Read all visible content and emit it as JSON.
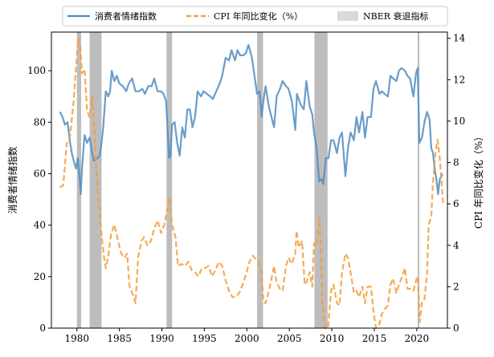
{
  "chart_data": {
    "type": "line",
    "x_axis": {
      "range": [
        1977.0,
        2023.6
      ],
      "ticks": [
        1980,
        1985,
        1990,
        1995,
        2000,
        2005,
        2010,
        2015,
        2020
      ],
      "tick_labels": [
        "1980",
        "1985",
        "1990",
        "1995",
        "2000",
        "2005",
        "2010",
        "2015",
        "2020"
      ]
    },
    "y_left": {
      "label": "消费者情绪指数",
      "range": [
        0,
        115
      ],
      "ticks": [
        0,
        20,
        40,
        60,
        80,
        100
      ],
      "tick_labels": [
        "0",
        "20",
        "40",
        "60",
        "80",
        "100"
      ]
    },
    "y_right": {
      "label": "CPI 年同比变化（%）",
      "range": [
        0,
        14.3
      ],
      "ticks": [
        0,
        2,
        4,
        6,
        8,
        10,
        12,
        14
      ],
      "tick_labels": [
        "0",
        "2",
        "4",
        "6",
        "8",
        "10",
        "12",
        "14"
      ]
    },
    "legend": {
      "placement": "top-center, above plot",
      "entries": [
        {
          "label": "消费者情绪指数",
          "style": "solid-line",
          "series": "sentiment"
        },
        {
          "label": "CPI 年同比变化（%）",
          "style": "dashed-line",
          "series": "cpi"
        },
        {
          "label": "NBER 衰退指标",
          "style": "shaded-box",
          "series": "recession"
        }
      ]
    },
    "series": [
      {
        "name": "消费者情绪指数",
        "key": "sentiment",
        "axis": "left",
        "color": "#4f8cc2",
        "points": [
          [
            1978.0,
            84
          ],
          [
            1978.3,
            82
          ],
          [
            1978.6,
            79
          ],
          [
            1978.9,
            80
          ],
          [
            1979.2,
            72
          ],
          [
            1979.4,
            68
          ],
          [
            1979.7,
            64
          ],
          [
            1979.9,
            62
          ],
          [
            1980.1,
            66
          ],
          [
            1980.3,
            59
          ],
          [
            1980.45,
            52
          ],
          [
            1980.6,
            62
          ],
          [
            1980.9,
            75
          ],
          [
            1981.2,
            72
          ],
          [
            1981.5,
            74
          ],
          [
            1981.8,
            68
          ],
          [
            1982.0,
            65
          ],
          [
            1982.4,
            66
          ],
          [
            1982.7,
            67
          ],
          [
            1982.9,
            72
          ],
          [
            1983.1,
            78
          ],
          [
            1983.4,
            92
          ],
          [
            1983.7,
            90
          ],
          [
            1983.9,
            92
          ],
          [
            1984.1,
            100
          ],
          [
            1984.4,
            96
          ],
          [
            1984.7,
            98
          ],
          [
            1985.0,
            95
          ],
          [
            1985.4,
            94
          ],
          [
            1985.8,
            92
          ],
          [
            1986.1,
            95
          ],
          [
            1986.5,
            97
          ],
          [
            1986.9,
            92
          ],
          [
            1987.3,
            92
          ],
          [
            1987.7,
            93
          ],
          [
            1988.0,
            91
          ],
          [
            1988.4,
            94
          ],
          [
            1988.8,
            94
          ],
          [
            1989.1,
            97
          ],
          [
            1989.5,
            92
          ],
          [
            1989.9,
            92
          ],
          [
            1990.2,
            91
          ],
          [
            1990.5,
            88
          ],
          [
            1990.7,
            76
          ],
          [
            1990.85,
            66
          ],
          [
            1991.0,
            67
          ],
          [
            1991.2,
            79
          ],
          [
            1991.5,
            80
          ],
          [
            1991.8,
            72
          ],
          [
            1992.1,
            67
          ],
          [
            1992.4,
            78
          ],
          [
            1992.7,
            74
          ],
          [
            1993.0,
            85
          ],
          [
            1993.3,
            85
          ],
          [
            1993.6,
            78
          ],
          [
            1993.9,
            82
          ],
          [
            1994.2,
            92
          ],
          [
            1994.6,
            90
          ],
          [
            1994.9,
            92
          ],
          [
            1995.3,
            91
          ],
          [
            1995.7,
            90
          ],
          [
            1996.0,
            89
          ],
          [
            1996.4,
            92
          ],
          [
            1996.8,
            95
          ],
          [
            1997.1,
            98
          ],
          [
            1997.5,
            105
          ],
          [
            1997.9,
            104
          ],
          [
            1998.2,
            108
          ],
          [
            1998.6,
            104
          ],
          [
            1998.9,
            108
          ],
          [
            1999.2,
            106
          ],
          [
            1999.6,
            106
          ],
          [
            1999.9,
            107
          ],
          [
            2000.2,
            110
          ],
          [
            2000.6,
            105
          ],
          [
            2000.9,
            98
          ],
          [
            2001.2,
            91
          ],
          [
            2001.5,
            92
          ],
          [
            2001.75,
            82
          ],
          [
            2001.9,
            87
          ],
          [
            2002.2,
            94
          ],
          [
            2002.6,
            86
          ],
          [
            2002.9,
            82
          ],
          [
            2003.2,
            78
          ],
          [
            2003.5,
            90
          ],
          [
            2003.9,
            93
          ],
          [
            2004.2,
            96
          ],
          [
            2004.6,
            94
          ],
          [
            2004.9,
            93
          ],
          [
            2005.3,
            88
          ],
          [
            2005.7,
            77
          ],
          [
            2005.9,
            91
          ],
          [
            2006.3,
            87
          ],
          [
            2006.7,
            85
          ],
          [
            2007.0,
            96
          ],
          [
            2007.4,
            86
          ],
          [
            2007.7,
            83
          ],
          [
            2007.9,
            76
          ],
          [
            2008.2,
            70
          ],
          [
            2008.5,
            57
          ],
          [
            2008.8,
            58
          ],
          [
            2009.0,
            56
          ],
          [
            2009.3,
            66
          ],
          [
            2009.6,
            66
          ],
          [
            2009.9,
            73
          ],
          [
            2010.2,
            73
          ],
          [
            2010.6,
            68
          ],
          [
            2010.9,
            74
          ],
          [
            2011.2,
            76
          ],
          [
            2011.6,
            59
          ],
          [
            2011.9,
            70
          ],
          [
            2012.2,
            76
          ],
          [
            2012.6,
            73
          ],
          [
            2012.9,
            82
          ],
          [
            2013.2,
            76
          ],
          [
            2013.6,
            84
          ],
          [
            2013.9,
            74
          ],
          [
            2014.2,
            82
          ],
          [
            2014.6,
            82
          ],
          [
            2014.9,
            93
          ],
          [
            2015.2,
            96
          ],
          [
            2015.6,
            91
          ],
          [
            2015.9,
            92
          ],
          [
            2016.2,
            91
          ],
          [
            2016.6,
            90
          ],
          [
            2016.9,
            98
          ],
          [
            2017.2,
            97
          ],
          [
            2017.6,
            96
          ],
          [
            2017.9,
            100
          ],
          [
            2018.2,
            101
          ],
          [
            2018.6,
            100
          ],
          [
            2018.9,
            98
          ],
          [
            2019.2,
            97
          ],
          [
            2019.6,
            90
          ],
          [
            2019.9,
            99
          ],
          [
            2020.1,
            101
          ],
          [
            2020.3,
            72
          ],
          [
            2020.6,
            74
          ],
          [
            2020.9,
            80
          ],
          [
            2021.2,
            84
          ],
          [
            2021.5,
            81
          ],
          [
            2021.7,
            70
          ],
          [
            2021.9,
            68
          ],
          [
            2022.1,
            62
          ],
          [
            2022.3,
            58
          ],
          [
            2022.5,
            52
          ],
          [
            2022.7,
            58
          ],
          [
            2022.9,
            59
          ],
          [
            2023.0,
            60
          ]
        ]
      },
      {
        "name": "CPI 年同比变化（%）",
        "key": "cpi",
        "axis": "right",
        "color": "#f39c3c",
        "points": [
          [
            1978.0,
            6.8
          ],
          [
            1978.4,
            6.9
          ],
          [
            1978.8,
            8.9
          ],
          [
            1979.2,
            9.3
          ],
          [
            1979.6,
            10.9
          ],
          [
            1979.9,
            12.6
          ],
          [
            1980.15,
            14.0
          ],
          [
            1980.4,
            13.6
          ],
          [
            1980.6,
            12.3
          ],
          [
            1980.9,
            12.5
          ],
          [
            1981.2,
            10.5
          ],
          [
            1981.5,
            10.2
          ],
          [
            1981.8,
            11.2
          ],
          [
            1982.0,
            10.0
          ],
          [
            1982.3,
            7.5
          ],
          [
            1982.6,
            6.0
          ],
          [
            1982.9,
            4.5
          ],
          [
            1983.2,
            3.4
          ],
          [
            1983.4,
            2.9
          ],
          [
            1983.7,
            3.5
          ],
          [
            1984.0,
            4.5
          ],
          [
            1984.4,
            5.0
          ],
          [
            1984.8,
            4.3
          ],
          [
            1985.2,
            3.6
          ],
          [
            1985.6,
            3.4
          ],
          [
            1985.9,
            3.6
          ],
          [
            1986.2,
            2.0
          ],
          [
            1986.6,
            1.6
          ],
          [
            1986.9,
            1.2
          ],
          [
            1987.2,
            3.4
          ],
          [
            1987.6,
            4.2
          ],
          [
            1987.9,
            4.4
          ],
          [
            1988.3,
            4.0
          ],
          [
            1988.7,
            4.2
          ],
          [
            1989.1,
            4.8
          ],
          [
            1989.5,
            5.2
          ],
          [
            1989.9,
            4.6
          ],
          [
            1990.3,
            5.0
          ],
          [
            1990.7,
            5.9
          ],
          [
            1990.9,
            6.3
          ],
          [
            1991.2,
            5.0
          ],
          [
            1991.6,
            4.4
          ],
          [
            1991.9,
            3.0
          ],
          [
            1992.3,
            3.1
          ],
          [
            1992.7,
            3.0
          ],
          [
            1993.1,
            3.2
          ],
          [
            1993.5,
            2.8
          ],
          [
            1993.9,
            2.7
          ],
          [
            1994.3,
            2.5
          ],
          [
            1994.7,
            2.9
          ],
          [
            1995.1,
            2.9
          ],
          [
            1995.5,
            3.0
          ],
          [
            1995.9,
            2.5
          ],
          [
            1996.3,
            2.8
          ],
          [
            1996.7,
            3.2
          ],
          [
            1997.1,
            3.0
          ],
          [
            1997.5,
            2.3
          ],
          [
            1997.9,
            1.8
          ],
          [
            1998.3,
            1.5
          ],
          [
            1998.7,
            1.5
          ],
          [
            1999.1,
            1.7
          ],
          [
            1999.5,
            2.1
          ],
          [
            1999.9,
            2.6
          ],
          [
            2000.3,
            3.2
          ],
          [
            2000.7,
            3.5
          ],
          [
            2000.9,
            3.4
          ],
          [
            2001.3,
            3.3
          ],
          [
            2001.7,
            2.7
          ],
          [
            2001.95,
            1.3
          ],
          [
            2002.2,
            1.2
          ],
          [
            2002.6,
            1.8
          ],
          [
            2002.9,
            2.4
          ],
          [
            2003.2,
            3.0
          ],
          [
            2003.5,
            2.2
          ],
          [
            2003.9,
            1.9
          ],
          [
            2004.2,
            1.8
          ],
          [
            2004.6,
            3.0
          ],
          [
            2004.9,
            3.4
          ],
          [
            2005.3,
            3.1
          ],
          [
            2005.7,
            3.6
          ],
          [
            2005.85,
            4.7
          ],
          [
            2006.1,
            3.9
          ],
          [
            2006.5,
            4.2
          ],
          [
            2006.8,
            2.1
          ],
          [
            2007.0,
            2.2
          ],
          [
            2007.4,
            2.7
          ],
          [
            2007.7,
            2.0
          ],
          [
            2007.9,
            4.1
          ],
          [
            2008.2,
            4.0
          ],
          [
            2008.55,
            5.4
          ],
          [
            2008.9,
            1.1
          ],
          [
            2009.2,
            -0.4
          ],
          [
            2009.55,
            -2.0
          ],
          [
            2009.9,
            1.8
          ],
          [
            2010.2,
            2.1
          ],
          [
            2010.6,
            1.2
          ],
          [
            2010.9,
            1.1
          ],
          [
            2011.2,
            2.7
          ],
          [
            2011.6,
            3.6
          ],
          [
            2011.9,
            3.4
          ],
          [
            2012.2,
            2.7
          ],
          [
            2012.6,
            1.7
          ],
          [
            2012.9,
            1.8
          ],
          [
            2013.2,
            1.5
          ],
          [
            2013.6,
            2.0
          ],
          [
            2013.9,
            1.2
          ],
          [
            2014.2,
            2.0
          ],
          [
            2014.6,
            2.0
          ],
          [
            2014.9,
            0.8
          ],
          [
            2015.2,
            -0.1
          ],
          [
            2015.6,
            0.2
          ],
          [
            2015.9,
            0.7
          ],
          [
            2016.2,
            0.9
          ],
          [
            2016.6,
            1.1
          ],
          [
            2016.9,
            2.1
          ],
          [
            2017.2,
            2.4
          ],
          [
            2017.6,
            1.7
          ],
          [
            2017.9,
            2.1
          ],
          [
            2018.2,
            2.4
          ],
          [
            2018.6,
            2.9
          ],
          [
            2018.9,
            1.9
          ],
          [
            2019.2,
            1.9
          ],
          [
            2019.6,
            1.8
          ],
          [
            2019.9,
            2.3
          ],
          [
            2020.1,
            2.5
          ],
          [
            2020.35,
            0.3
          ],
          [
            2020.6,
            1.3
          ],
          [
            2020.9,
            1.4
          ],
          [
            2021.2,
            2.6
          ],
          [
            2021.4,
            5.0
          ],
          [
            2021.7,
            5.4
          ],
          [
            2021.9,
            7.0
          ],
          [
            2022.2,
            8.5
          ],
          [
            2022.45,
            9.1
          ],
          [
            2022.7,
            8.2
          ],
          [
            2022.9,
            7.1
          ],
          [
            2023.1,
            6.0
          ]
        ]
      }
    ],
    "recessions": [
      [
        1980.0,
        1980.5
      ],
      [
        1981.5,
        1982.9
      ],
      [
        1990.55,
        1991.2
      ],
      [
        2001.2,
        2001.9
      ],
      [
        2007.95,
        2009.5
      ],
      [
        2020.1,
        2020.3
      ]
    ],
    "recession_color": "#bdbdbd",
    "grid": false
  }
}
